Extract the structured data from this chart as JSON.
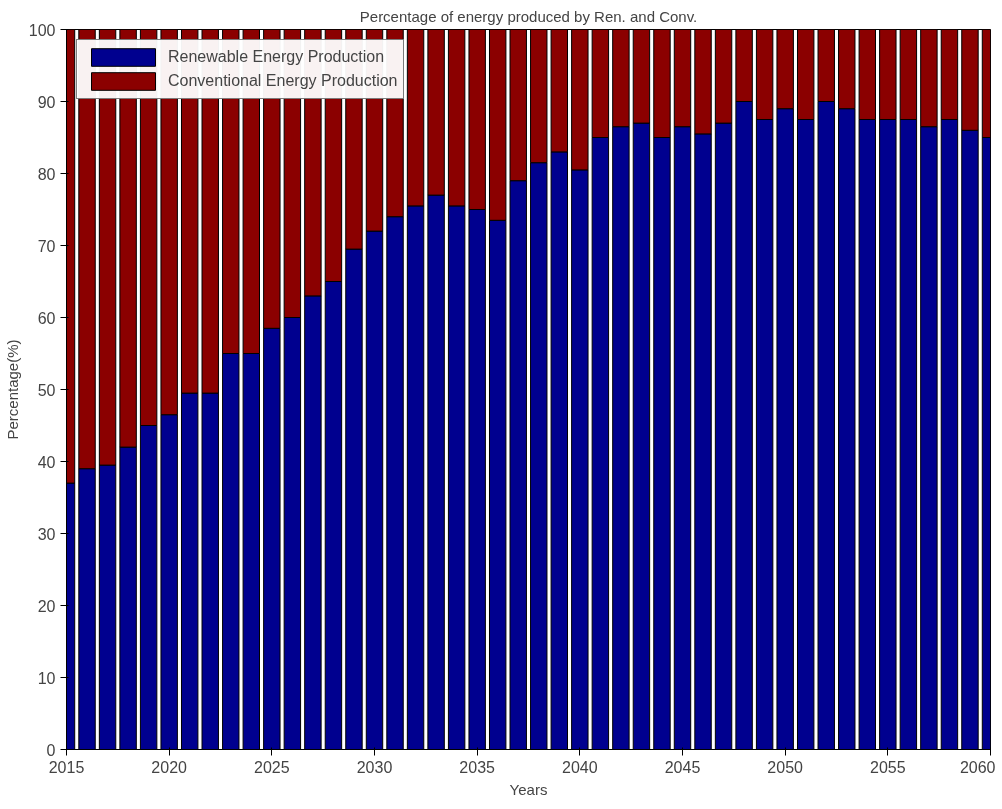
{
  "chart_data": {
    "type": "bar",
    "stacked": true,
    "title": "Percentage of energy produced by Ren. and Conv.",
    "xlabel": "Years",
    "ylabel": "Percentage(%)",
    "x": [
      2015,
      2016,
      2017,
      2018,
      2019,
      2020,
      2021,
      2022,
      2023,
      2024,
      2025,
      2026,
      2027,
      2028,
      2029,
      2030,
      2031,
      2032,
      2033,
      2034,
      2035,
      2036,
      2037,
      2038,
      2039,
      2040,
      2041,
      2042,
      2043,
      2044,
      2045,
      2046,
      2047,
      2048,
      2049,
      2050,
      2051,
      2052,
      2053,
      2054,
      2055,
      2056,
      2057,
      2058,
      2059,
      2060
    ],
    "series": [
      {
        "name": "Renewable Energy Production",
        "color": "#00008f",
        "values": [
          37,
          39,
          39.5,
          42,
          45,
          46.5,
          49.5,
          49.5,
          55,
          55,
          58.5,
          60,
          63,
          65,
          69.5,
          72,
          74,
          75.5,
          77,
          75.5,
          75,
          73.5,
          79,
          81.5,
          83,
          80.5,
          85,
          86.5,
          87,
          85,
          86.5,
          85.5,
          87,
          90,
          87.5,
          89,
          87.5,
          90,
          89,
          87.5,
          87.5,
          87.5,
          86.5,
          87.5,
          86,
          85
        ]
      },
      {
        "name": "Conventional Energy Production",
        "color": "#8b0000",
        "values": [
          63,
          61,
          60.5,
          58,
          55,
          53.5,
          50.5,
          50.5,
          45,
          45,
          41.5,
          40,
          37,
          35,
          30.5,
          28,
          26,
          24.5,
          23,
          24.5,
          25,
          26.5,
          21,
          18.5,
          17,
          19.5,
          15,
          13.5,
          13,
          15,
          13.5,
          14.5,
          13,
          10,
          12.5,
          11,
          12.5,
          10,
          11,
          12.5,
          12.5,
          12.5,
          13.5,
          12.5,
          14,
          15
        ]
      }
    ],
    "xlim": [
      2015,
      2060
    ],
    "xticks": [
      2015,
      2020,
      2025,
      2030,
      2035,
      2040,
      2045,
      2050,
      2055,
      2060
    ],
    "ylim": [
      0,
      100
    ],
    "yticks": [
      0,
      10,
      20,
      30,
      40,
      50,
      60,
      70,
      80,
      90,
      100
    ],
    "grid": false,
    "legend": "top left"
  }
}
